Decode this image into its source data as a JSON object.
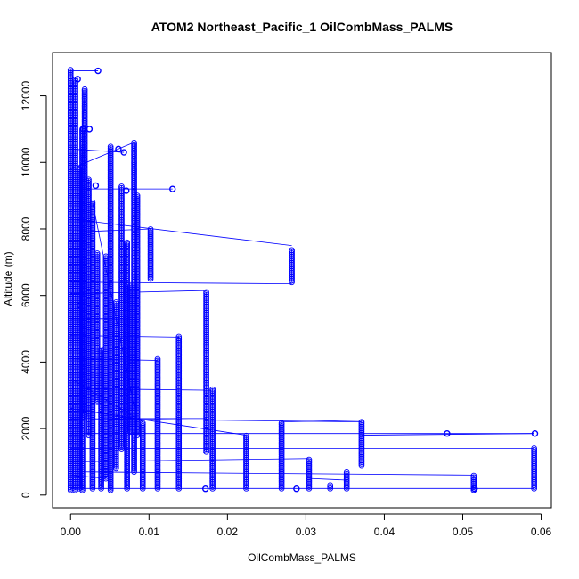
{
  "chart_data": {
    "type": "scatter",
    "title": "ATOM2 Northeast_Pacific_1 OilCombMass_PALMS",
    "xlabel": "OilCombMass_PALMS",
    "ylabel": "Altitude (m)",
    "xlim": [
      -0.0023,
      0.0613
    ],
    "ylim": [
      -380,
      13300
    ],
    "x_ticks": [
      0.0,
      0.01,
      0.02,
      0.03,
      0.04,
      0.05,
      0.06
    ],
    "x_tick_labels": [
      "0.00",
      "0.01",
      "0.02",
      "0.03",
      "0.04",
      "0.05",
      "0.06"
    ],
    "y_ticks": [
      0,
      2000,
      4000,
      6000,
      8000,
      10000,
      12000
    ],
    "y_tick_labels": [
      "0",
      "2000",
      "4000",
      "6000",
      "8000",
      "10000",
      "12000"
    ],
    "marker": "open-circle",
    "connect_points": true,
    "color": "#0000ff",
    "grid": false,
    "legend": "none",
    "columns": [
      {
        "x": 0.0,
        "y_min": 150,
        "y_max": 12800
      },
      {
        "x": 0.0006,
        "y_min": 150,
        "y_max": 12500
      },
      {
        "x": 0.0011,
        "y_min": 200,
        "y_max": 9800
      },
      {
        "x": 0.0015,
        "y_min": 150,
        "y_max": 11000
      },
      {
        "x": 0.0018,
        "y_min": 2400,
        "y_max": 12200
      },
      {
        "x": 0.0023,
        "y_min": 1800,
        "y_max": 9500
      },
      {
        "x": 0.0028,
        "y_min": 200,
        "y_max": 8800
      },
      {
        "x": 0.0034,
        "y_min": 2800,
        "y_max": 7300
      },
      {
        "x": 0.0039,
        "y_min": 200,
        "y_max": 4400
      },
      {
        "x": 0.0045,
        "y_min": 500,
        "y_max": 7200
      },
      {
        "x": 0.0051,
        "y_min": 150,
        "y_max": 10500
      },
      {
        "x": 0.0058,
        "y_min": 800,
        "y_max": 5800
      },
      {
        "x": 0.0065,
        "y_min": 1400,
        "y_max": 9300
      },
      {
        "x": 0.0072,
        "y_min": 200,
        "y_max": 7600
      },
      {
        "x": 0.0076,
        "y_min": 1900,
        "y_max": 6300
      },
      {
        "x": 0.0081,
        "y_min": 700,
        "y_max": 10600
      },
      {
        "x": 0.0085,
        "y_min": 1800,
        "y_max": 9000
      },
      {
        "x": 0.0092,
        "y_min": 200,
        "y_max": 2200
      },
      {
        "x": 0.0102,
        "y_min": 6500,
        "y_max": 8000
      },
      {
        "x": 0.0111,
        "y_min": 200,
        "y_max": 4100
      },
      {
        "x": 0.0138,
        "y_min": 200,
        "y_max": 4800
      },
      {
        "x": 0.0173,
        "y_min": 1300,
        "y_max": 6100
      },
      {
        "x": 0.0181,
        "y_min": 200,
        "y_max": 3200
      },
      {
        "x": 0.0224,
        "y_min": 200,
        "y_max": 1800
      },
      {
        "x": 0.0269,
        "y_min": 200,
        "y_max": 2200
      },
      {
        "x": 0.0282,
        "y_min": 6400,
        "y_max": 7400
      },
      {
        "x": 0.0304,
        "y_min": 200,
        "y_max": 1100
      },
      {
        "x": 0.0331,
        "y_min": 200,
        "y_max": 300
      },
      {
        "x": 0.0352,
        "y_min": 200,
        "y_max": 700
      },
      {
        "x": 0.0371,
        "y_min": 900,
        "y_max": 2200
      },
      {
        "x": 0.0514,
        "y_min": 150,
        "y_max": 600
      },
      {
        "x": 0.0591,
        "y_min": 200,
        "y_max": 1400
      }
    ],
    "isolated_points": [
      {
        "x": 0.0035,
        "y": 12750
      },
      {
        "x": 0.0009,
        "y": 12500
      },
      {
        "x": 0.0016,
        "y": 11000
      },
      {
        "x": 0.0024,
        "y": 11000
      },
      {
        "x": 0.0061,
        "y": 10400
      },
      {
        "x": 0.0068,
        "y": 10300
      },
      {
        "x": 0.0032,
        "y": 9300
      },
      {
        "x": 0.013,
        "y": 9200
      },
      {
        "x": 0.0071,
        "y": 9150
      },
      {
        "x": 0.0012,
        "y": 5700
      },
      {
        "x": 0.048,
        "y": 1850
      },
      {
        "x": 0.0592,
        "y": 1850
      },
      {
        "x": 0.0288,
        "y": 190
      },
      {
        "x": 0.0515,
        "y": 190
      },
      {
        "x": 0.0172,
        "y": 190
      }
    ],
    "connecting_lines": [
      {
        "x1": 0.0,
        "y1": 12750,
        "x2": 0.0035,
        "y2": 12750
      },
      {
        "x1": 0.0,
        "y1": 8300,
        "x2": 0.0282,
        "y2": 7500
      },
      {
        "x1": 0.0,
        "y1": 6400,
        "x2": 0.0282,
        "y2": 6350
      },
      {
        "x1": 0.0,
        "y1": 6050,
        "x2": 0.0173,
        "y2": 6150
      },
      {
        "x1": 0.0,
        "y1": 9200,
        "x2": 0.013,
        "y2": 9200
      },
      {
        "x1": 0.0,
        "y1": 2300,
        "x2": 0.0371,
        "y2": 2200
      },
      {
        "x1": 0.0,
        "y1": 1850,
        "x2": 0.0591,
        "y2": 1850
      },
      {
        "x1": 0.0,
        "y1": 1400,
        "x2": 0.0591,
        "y2": 1400
      },
      {
        "x1": 0.0,
        "y1": 1000,
        "x2": 0.0304,
        "y2": 1100
      },
      {
        "x1": 0.0,
        "y1": 700,
        "x2": 0.0514,
        "y2": 600
      },
      {
        "x1": 0.0,
        "y1": 200,
        "x2": 0.0591,
        "y2": 200
      },
      {
        "x1": 0.0,
        "y1": 2600,
        "x2": 0.0224,
        "y2": 1800
      },
      {
        "x1": 0.0,
        "y1": 3200,
        "x2": 0.0181,
        "y2": 3150
      },
      {
        "x1": 0.0,
        "y1": 4800,
        "x2": 0.0138,
        "y2": 4750
      },
      {
        "x1": 0.0,
        "y1": 4100,
        "x2": 0.0111,
        "y2": 4050
      },
      {
        "x1": 0.0,
        "y1": 10400,
        "x2": 0.0068,
        "y2": 10300
      },
      {
        "x1": 0.0,
        "y1": 9800,
        "x2": 0.0081,
        "y2": 10600
      },
      {
        "x1": 0.0,
        "y1": 7900,
        "x2": 0.0102,
        "y2": 8000
      },
      {
        "x1": 0.0028,
        "y1": 8800,
        "x2": 0.0085,
        "y2": 2200
      },
      {
        "x1": 0.0051,
        "y1": 10500,
        "x2": 0.0051,
        "y2": 200
      },
      {
        "x1": 0.0018,
        "y1": 12200,
        "x2": 0.0011,
        "y2": 8600
      },
      {
        "x1": 0.0269,
        "y1": 2200,
        "x2": 0.0371,
        "y2": 2250
      },
      {
        "x1": 0.0371,
        "y1": 1800,
        "x2": 0.0591,
        "y2": 1850
      },
      {
        "x1": 0.0304,
        "y1": 500,
        "x2": 0.0352,
        "y2": 450
      },
      {
        "x1": 0.0051,
        "y1": 2300,
        "x2": 0.0173,
        "y2": 2300
      },
      {
        "x1": 0.0,
        "y1": 5300,
        "x2": 0.0072,
        "y2": 5300
      },
      {
        "x1": 0.0,
        "y1": 3500,
        "x2": 0.0092,
        "y2": 2200
      },
      {
        "x1": 0.0,
        "y1": 600,
        "x2": 0.0045,
        "y2": 500
      }
    ]
  }
}
